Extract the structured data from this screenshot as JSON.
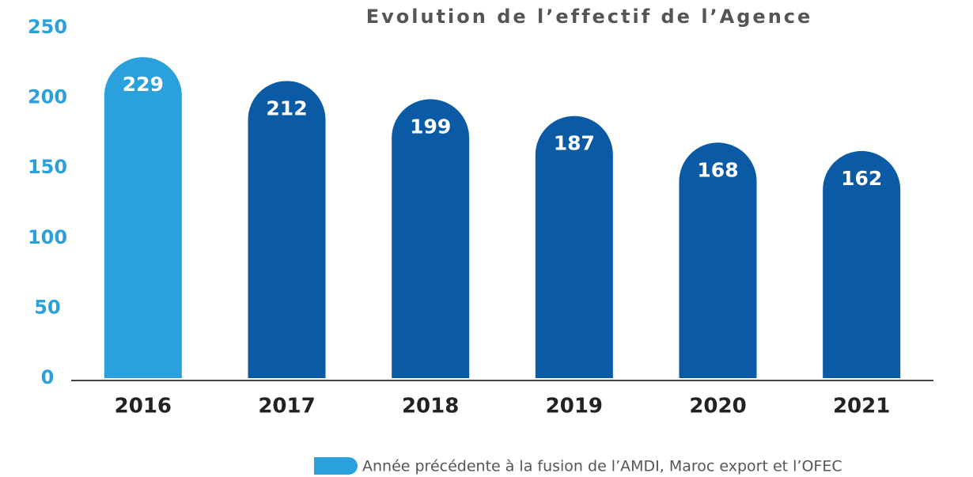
{
  "chart_data": {
    "type": "bar",
    "title": "Evolution de l’effectif de l’Agence",
    "categories": [
      "2016",
      "2017",
      "2018",
      "2019",
      "2020",
      "2021"
    ],
    "values": [
      229,
      212,
      199,
      187,
      168,
      162
    ],
    "colors": [
      "#2aa1dd",
      "#0b5aa6",
      "#0b5aa6",
      "#0b5aa6",
      "#0b5aa6",
      "#0b5aa6"
    ],
    "ylim": [
      0,
      250
    ],
    "yticks": [
      0,
      50,
      100,
      150,
      200,
      250
    ],
    "grid": false,
    "legend": {
      "label": "Année précédente à la fusion de l’AMDI, Maroc export et l’OFEC",
      "color": "#2aa1dd",
      "position": "bottom-right"
    }
  }
}
